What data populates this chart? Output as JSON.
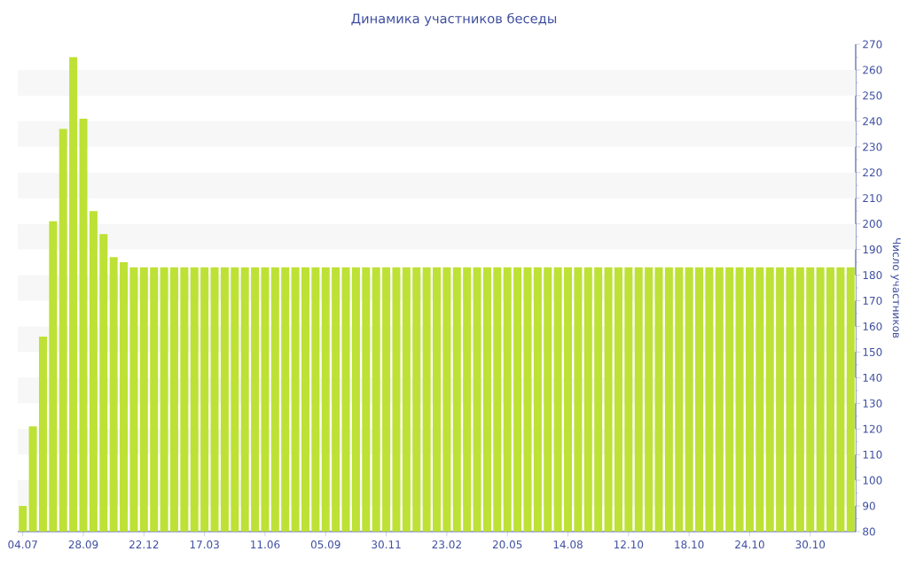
{
  "chart_data": {
    "type": "bar",
    "title": "Динамика участников беседы",
    "ylabel": "Число участников",
    "categories": [
      "04.07",
      null,
      null,
      null,
      null,
      null,
      "28.09",
      null,
      null,
      null,
      null,
      null,
      "22.12",
      null,
      null,
      null,
      null,
      null,
      "17.03",
      null,
      null,
      null,
      null,
      null,
      "11.06",
      null,
      null,
      null,
      null,
      null,
      "05.09",
      null,
      null,
      null,
      null,
      null,
      "30.11",
      null,
      null,
      null,
      null,
      null,
      "23.02",
      null,
      null,
      null,
      null,
      null,
      "20.05",
      null,
      null,
      null,
      null,
      null,
      "14.08",
      null,
      null,
      null,
      null,
      null,
      "12.10",
      null,
      null,
      null,
      null,
      null,
      "18.10",
      null,
      null,
      null,
      null,
      null,
      "24.10",
      null,
      null,
      null,
      null,
      null,
      "30.10",
      null,
      null,
      null,
      null
    ],
    "values": [
      90,
      121,
      156,
      201,
      237,
      265,
      241,
      205,
      196,
      187,
      185,
      183,
      183,
      183,
      183,
      183,
      183,
      183,
      183,
      183,
      183,
      183,
      183,
      183,
      183,
      183,
      183,
      183,
      183,
      183,
      183,
      183,
      183,
      183,
      183,
      183,
      183,
      183,
      183,
      183,
      183,
      183,
      183,
      183,
      183,
      183,
      183,
      183,
      183,
      183,
      183,
      183,
      183,
      183,
      183,
      183,
      183,
      183,
      183,
      183,
      183,
      183,
      183,
      183,
      183,
      183,
      183,
      183,
      183,
      183,
      183,
      183,
      183,
      183,
      183,
      183,
      183,
      183,
      183,
      183,
      183,
      183,
      183
    ],
    "color": "#bde135",
    "ylim": [
      80,
      270
    ],
    "yticks": [
      80,
      90,
      100,
      110,
      120,
      130,
      140,
      150,
      160,
      170,
      180,
      190,
      200,
      210,
      220,
      230,
      240,
      250,
      260,
      270
    ],
    "bands": [
      {
        "axis": "y",
        "from": 90,
        "to": 100,
        "color": "#f7f7f7"
      },
      {
        "axis": "y",
        "from": 110,
        "to": 120,
        "color": "#f7f7f7"
      },
      {
        "axis": "y",
        "from": 130,
        "to": 140,
        "color": "#f7f7f7"
      },
      {
        "axis": "y",
        "from": 150,
        "to": 160,
        "color": "#f7f7f7"
      },
      {
        "axis": "y",
        "from": 170,
        "to": 180,
        "color": "#f7f7f7"
      },
      {
        "axis": "y",
        "from": 190,
        "to": 200,
        "color": "#f7f7f7"
      },
      {
        "axis": "y",
        "from": 210,
        "to": 220,
        "color": "#f7f7f7"
      },
      {
        "axis": "y",
        "from": 230,
        "to": 240,
        "color": "#f7f7f7"
      },
      {
        "axis": "y",
        "from": 250,
        "to": 260,
        "color": "#f7f7f7"
      }
    ]
  }
}
